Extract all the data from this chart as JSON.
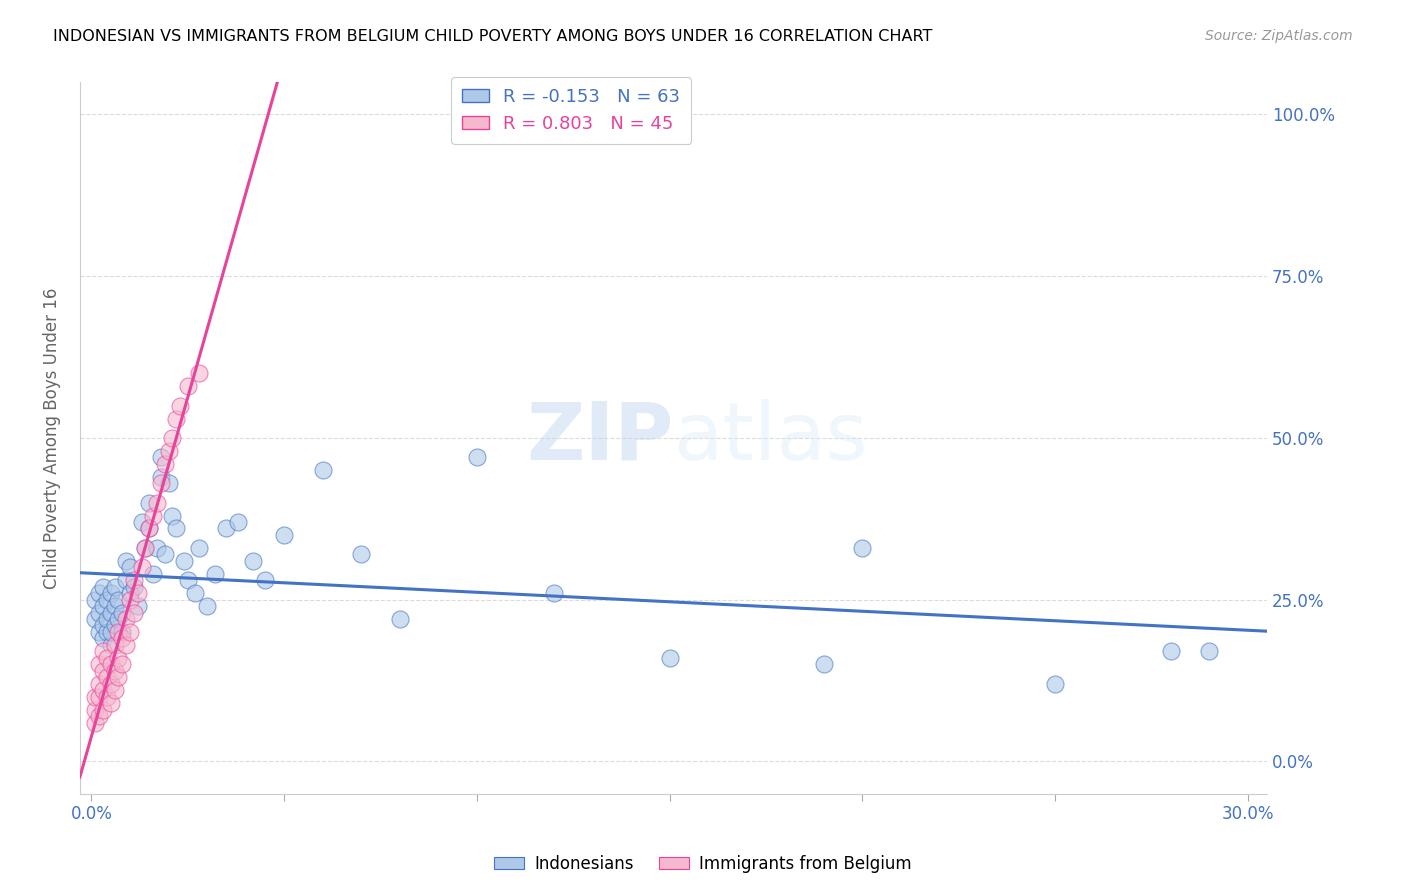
{
  "title": "INDONESIAN VS IMMIGRANTS FROM BELGIUM CHILD POVERTY AMONG BOYS UNDER 16 CORRELATION CHART",
  "source": "Source: ZipAtlas.com",
  "ylabel": "Child Poverty Among Boys Under 16",
  "indonesians_color": "#aec8e8",
  "belgium_color": "#f5b8ce",
  "indonesians_line_color": "#4472c4",
  "belgium_line_color": "#e8439a",
  "indonesians_R": -0.153,
  "indonesians_N": 63,
  "belgium_R": 0.803,
  "belgium_N": 45,
  "xlim": [
    -0.003,
    0.305
  ],
  "ylim": [
    -0.05,
    1.05
  ],
  "x_ticks": [
    0.0,
    0.05,
    0.1,
    0.15,
    0.2,
    0.25,
    0.3
  ],
  "y_ticks": [
    0.0,
    0.25,
    0.5,
    0.75,
    1.0
  ],
  "right_y_labels": [
    "0.0%",
    "25.0%",
    "50.0%",
    "75.0%",
    "100.0%"
  ],
  "indonesians_x": [
    0.001,
    0.001,
    0.002,
    0.002,
    0.002,
    0.003,
    0.003,
    0.003,
    0.003,
    0.004,
    0.004,
    0.004,
    0.005,
    0.005,
    0.005,
    0.005,
    0.006,
    0.006,
    0.006,
    0.007,
    0.007,
    0.008,
    0.008,
    0.009,
    0.009,
    0.01,
    0.01,
    0.011,
    0.012,
    0.013,
    0.014,
    0.015,
    0.015,
    0.016,
    0.017,
    0.018,
    0.018,
    0.019,
    0.02,
    0.021,
    0.022,
    0.024,
    0.025,
    0.027,
    0.028,
    0.03,
    0.032,
    0.035,
    0.038,
    0.042,
    0.045,
    0.05,
    0.06,
    0.07,
    0.08,
    0.1,
    0.12,
    0.15,
    0.19,
    0.2,
    0.25,
    0.28,
    0.29
  ],
  "indonesians_y": [
    0.22,
    0.25,
    0.2,
    0.23,
    0.26,
    0.19,
    0.21,
    0.24,
    0.27,
    0.2,
    0.22,
    0.25,
    0.18,
    0.2,
    0.23,
    0.26,
    0.21,
    0.24,
    0.27,
    0.22,
    0.25,
    0.2,
    0.23,
    0.28,
    0.31,
    0.26,
    0.3,
    0.27,
    0.24,
    0.37,
    0.33,
    0.36,
    0.4,
    0.29,
    0.33,
    0.44,
    0.47,
    0.32,
    0.43,
    0.38,
    0.36,
    0.31,
    0.28,
    0.26,
    0.33,
    0.24,
    0.29,
    0.36,
    0.37,
    0.31,
    0.28,
    0.35,
    0.45,
    0.32,
    0.22,
    0.47,
    0.26,
    0.16,
    0.15,
    0.33,
    0.12,
    0.17,
    0.17
  ],
  "belgium_x": [
    0.001,
    0.001,
    0.001,
    0.002,
    0.002,
    0.002,
    0.002,
    0.003,
    0.003,
    0.003,
    0.003,
    0.004,
    0.004,
    0.004,
    0.005,
    0.005,
    0.005,
    0.006,
    0.006,
    0.006,
    0.007,
    0.007,
    0.007,
    0.008,
    0.008,
    0.009,
    0.009,
    0.01,
    0.01,
    0.011,
    0.011,
    0.012,
    0.013,
    0.014,
    0.015,
    0.016,
    0.017,
    0.018,
    0.019,
    0.02,
    0.021,
    0.022,
    0.023,
    0.025,
    0.028
  ],
  "belgium_y": [
    0.06,
    0.08,
    0.1,
    0.07,
    0.1,
    0.12,
    0.15,
    0.08,
    0.11,
    0.14,
    0.17,
    0.1,
    0.13,
    0.16,
    0.09,
    0.12,
    0.15,
    0.11,
    0.14,
    0.18,
    0.13,
    0.16,
    0.2,
    0.15,
    0.19,
    0.18,
    0.22,
    0.2,
    0.25,
    0.23,
    0.28,
    0.26,
    0.3,
    0.33,
    0.36,
    0.38,
    0.4,
    0.43,
    0.46,
    0.48,
    0.5,
    0.53,
    0.55,
    0.58,
    0.6
  ]
}
